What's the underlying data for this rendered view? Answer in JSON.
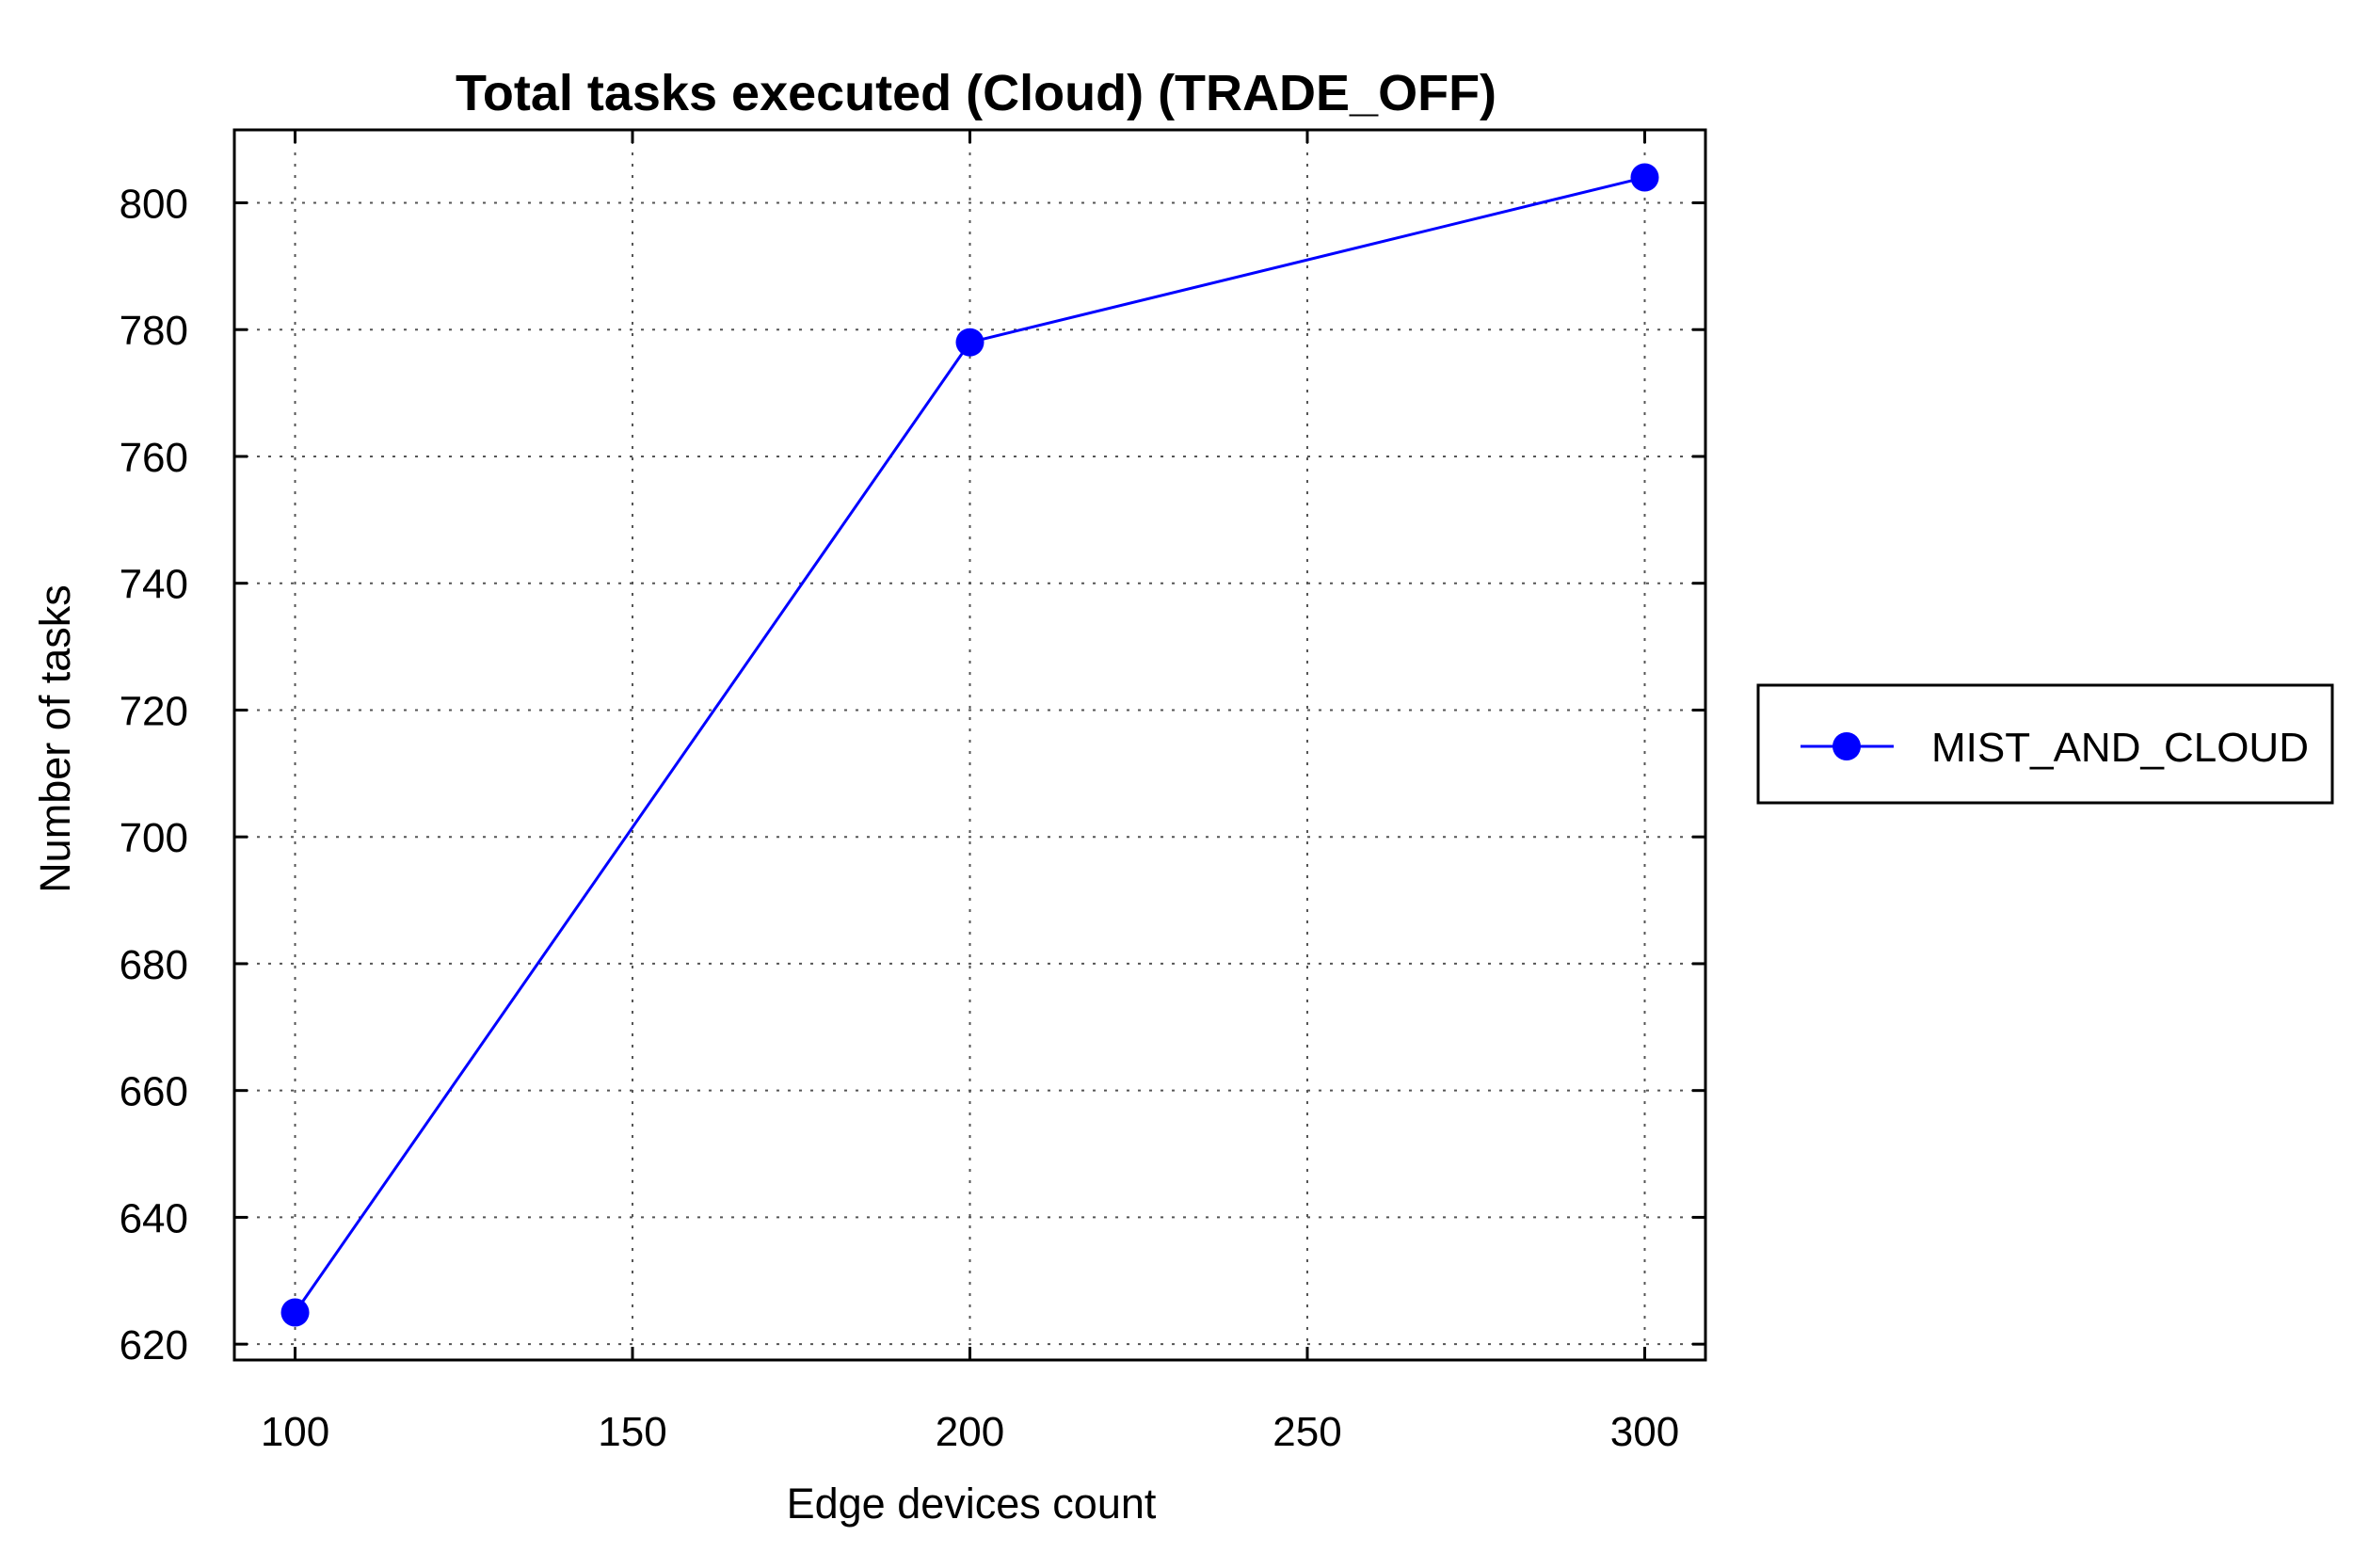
{
  "chart_data": {
    "type": "line",
    "title": "Total tasks executed (Cloud) (TRADE_OFF)",
    "xlabel": "Edge devices count",
    "ylabel": "Number of tasks",
    "x": [
      100,
      200,
      300
    ],
    "xticks": [
      "100",
      "150",
      "200",
      "250",
      "300"
    ],
    "yticks": [
      "620",
      "640",
      "660",
      "680",
      "700",
      "720",
      "740",
      "760",
      "780",
      "800"
    ],
    "xlim": [
      91,
      309
    ],
    "ylim": [
      617.5,
      811.5
    ],
    "grid": true,
    "legend": "right",
    "series": [
      {
        "name": "MIST_AND_CLOUD",
        "values": [
          625,
          778,
          804
        ],
        "color": "#0000ff",
        "marker": "circle"
      }
    ]
  }
}
